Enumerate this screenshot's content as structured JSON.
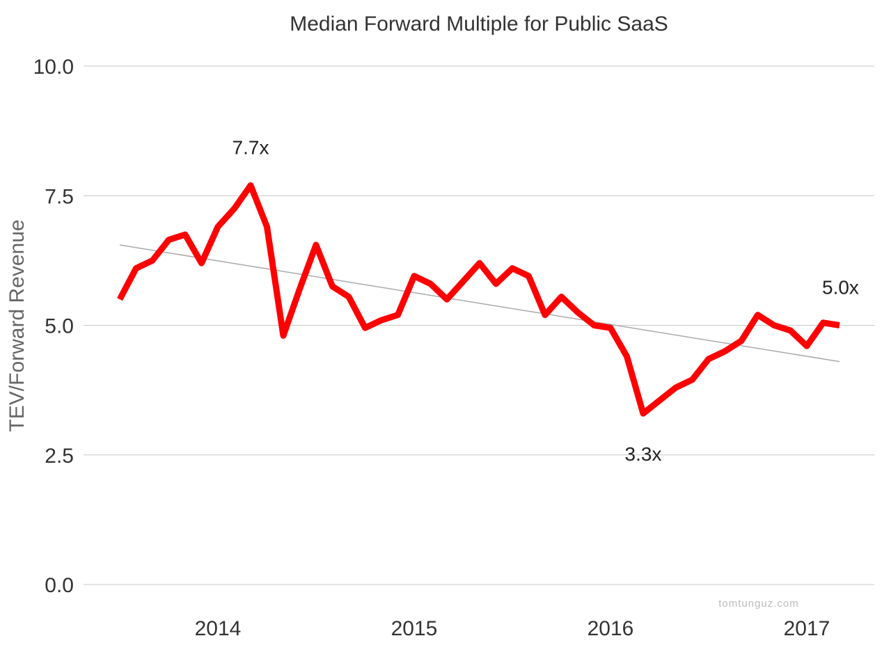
{
  "chart_data": {
    "type": "line",
    "title": "Median Forward Multiple for Public SaaS",
    "xlabel": "",
    "ylabel": "TEV/Forward Revenue",
    "ylim": [
      0,
      10
    ],
    "yticks": [
      "0.0",
      "2.5",
      "5.0",
      "7.5",
      "10.0"
    ],
    "xticks": [
      "2014",
      "2015",
      "2016",
      "2017"
    ],
    "grid": true,
    "line_color": "#ff0000",
    "trend_color": "#aaaaaa",
    "series": [
      {
        "x": [
          "2013-07",
          "2013-08",
          "2013-09",
          "2013-10",
          "2013-11",
          "2013-12",
          "2014-01",
          "2014-02",
          "2014-03",
          "2014-04",
          "2014-05",
          "2014-06",
          "2014-07",
          "2014-08",
          "2014-09",
          "2014-10",
          "2014-11",
          "2014-12",
          "2015-01",
          "2015-02",
          "2015-03",
          "2015-04",
          "2015-05",
          "2015-06",
          "2015-07",
          "2015-08",
          "2015-09",
          "2015-10",
          "2015-11",
          "2015-12",
          "2016-01",
          "2016-02",
          "2016-03",
          "2016-04",
          "2016-05",
          "2016-06",
          "2016-07",
          "2016-08",
          "2016-09",
          "2016-10",
          "2016-11",
          "2016-12",
          "2017-01",
          "2017-02",
          "2017-03"
        ],
        "values": [
          5.5,
          6.1,
          6.25,
          6.65,
          6.75,
          6.2,
          6.9,
          7.25,
          7.7,
          6.9,
          4.8,
          5.7,
          6.55,
          5.75,
          5.55,
          4.95,
          5.1,
          5.2,
          5.95,
          5.8,
          5.5,
          5.85,
          6.2,
          5.8,
          6.1,
          5.95,
          5.2,
          5.55,
          5.25,
          5.0,
          4.95,
          4.4,
          3.3,
          3.55,
          3.8,
          3.95,
          4.35,
          4.5,
          4.7,
          5.2,
          5.0,
          4.9,
          4.6,
          5.05,
          5.0
        ]
      }
    ],
    "trendline": {
      "start": 6.55,
      "end": 4.3
    },
    "annotations": [
      {
        "text": "7.7x",
        "x": "2014-03",
        "y": 7.7,
        "placement": "above"
      },
      {
        "text": "3.3x",
        "x": "2016-03",
        "y": 3.3,
        "placement": "below"
      },
      {
        "text": "5.0x",
        "x": "2017-03",
        "y": 5.0,
        "placement": "above"
      }
    ],
    "watermark": "tomtunguz.com"
  }
}
